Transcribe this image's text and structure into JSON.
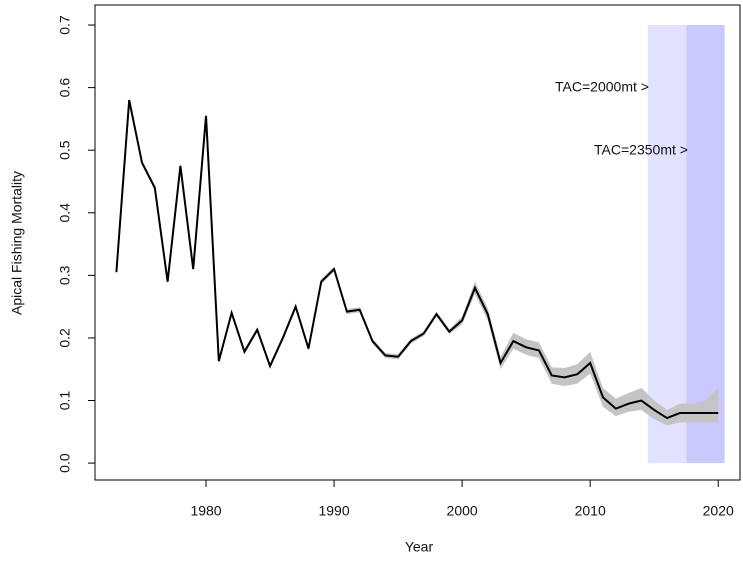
{
  "chart_data": {
    "type": "line",
    "x_label": "Year",
    "y_label": "Apical Fishing Mortality",
    "x": [
      1973,
      1974,
      1975,
      1976,
      1977,
      1978,
      1979,
      1980,
      1981,
      1982,
      1983,
      1984,
      1985,
      1986,
      1987,
      1988,
      1989,
      1990,
      1991,
      1992,
      1993,
      1994,
      1995,
      1996,
      1997,
      1998,
      1999,
      2000,
      2001,
      2002,
      2003,
      2004,
      2005,
      2006,
      2007,
      2008,
      2009,
      2010,
      2011,
      2012,
      2013,
      2014,
      2015,
      2016,
      2017,
      2018,
      2019,
      2020
    ],
    "values": [
      0.305,
      0.58,
      0.48,
      0.44,
      0.29,
      0.475,
      0.31,
      0.555,
      0.163,
      0.24,
      0.178,
      0.213,
      0.155,
      0.2,
      0.25,
      0.183,
      0.29,
      0.31,
      0.242,
      0.245,
      0.195,
      0.172,
      0.17,
      0.195,
      0.207,
      0.238,
      0.21,
      0.228,
      0.28,
      0.238,
      0.16,
      0.195,
      0.185,
      0.18,
      0.14,
      0.137,
      0.142,
      0.16,
      0.105,
      0.087,
      0.095,
      0.1,
      0.085,
      0.072,
      0.08,
      0.08,
      0.08,
      0.08
    ],
    "ci_lower": [
      0.301,
      0.576,
      0.476,
      0.436,
      0.286,
      0.471,
      0.306,
      0.551,
      0.159,
      0.236,
      0.174,
      0.209,
      0.151,
      0.196,
      0.246,
      0.179,
      0.286,
      0.306,
      0.238,
      0.241,
      0.191,
      0.168,
      0.166,
      0.191,
      0.203,
      0.234,
      0.206,
      0.222,
      0.27,
      0.228,
      0.15,
      0.183,
      0.173,
      0.168,
      0.127,
      0.123,
      0.127,
      0.143,
      0.09,
      0.075,
      0.082,
      0.085,
      0.07,
      0.06,
      0.065,
      0.065,
      0.065,
      0.065
    ],
    "ci_upper": [
      0.309,
      0.584,
      0.484,
      0.444,
      0.294,
      0.479,
      0.314,
      0.559,
      0.167,
      0.244,
      0.182,
      0.217,
      0.159,
      0.204,
      0.254,
      0.187,
      0.294,
      0.314,
      0.246,
      0.249,
      0.199,
      0.176,
      0.174,
      0.199,
      0.211,
      0.242,
      0.214,
      0.234,
      0.29,
      0.248,
      0.17,
      0.208,
      0.198,
      0.193,
      0.153,
      0.152,
      0.158,
      0.178,
      0.12,
      0.103,
      0.112,
      0.12,
      0.1,
      0.085,
      0.095,
      0.095,
      0.1,
      0.12
    ],
    "color": "#000000",
    "ci_color": "#c4c4c4",
    "xlim": [
      1971.33,
      2021.7
    ],
    "ylim": [
      -0.027,
      0.732
    ],
    "xticks": [
      1980,
      1990,
      2000,
      2010,
      2020
    ],
    "yticks": [
      {
        "value": 0,
        "label": "0.0"
      },
      0.1,
      0.2,
      0.3,
      0.4,
      0.5,
      0.6,
      0.7
    ],
    "shaded_regions": [
      {
        "xlim": [
          2014.5,
          2017.5
        ],
        "ylim": [
          0,
          0.7
        ],
        "color": "#e2e2ff"
      },
      {
        "xlim": [
          2017.5,
          2020.5
        ],
        "ylim": [
          0,
          0.7
        ],
        "color": "#c9c9fd"
      }
    ],
    "annotations": [
      {
        "text": "TAC=2000mt >"
      },
      {
        "text": "TAC=2350mt >"
      }
    ]
  }
}
